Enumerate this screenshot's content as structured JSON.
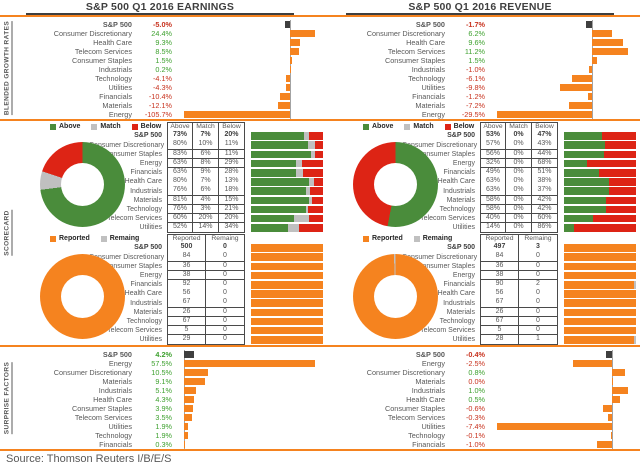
{
  "page": {
    "source": "Source: Thomson Reuters I/B/E/S",
    "section_labels": [
      "BLENDED GROWTH RATES",
      "SCORECARD",
      "SURPRISE FACTORS"
    ],
    "colors": {
      "orange": "#F5831F",
      "green": "#4A8C3B",
      "red": "#DD2415",
      "gray": "#C0C0C0",
      "dark": "#3F3F3F",
      "text_green": "#3EA12F",
      "text_red": "#C8331F"
    }
  },
  "panels": {
    "earnings": {
      "title": "S&P 500 Q1 2016 EARNINGS"
    },
    "revenue": {
      "title": "S&P 500 Q1 2016 REVENUE"
    }
  },
  "chart_data": [
    {
      "slot": "earnings-growth",
      "type": "bar",
      "title": "S&P 500 Q1 2016 Earnings — Blended Growth Rates (%)",
      "orientation": "horizontal",
      "rows": [
        {
          "label": "S&P 500",
          "value": -5.0,
          "display": "-5.0%",
          "color": "red",
          "benchmark": true
        },
        {
          "label": "Consumer Discretionary",
          "value": 24.4,
          "display": "24.4%",
          "color": "green"
        },
        {
          "label": "Health Care",
          "value": 9.3,
          "display": "9.3%",
          "color": "green"
        },
        {
          "label": "Telecom Services",
          "value": 8.5,
          "display": "8.5%",
          "color": "green"
        },
        {
          "label": "Consumer Staples",
          "value": 1.5,
          "display": "1.5%",
          "color": "green"
        },
        {
          "label": "Industrials",
          "value": 0.2,
          "display": "0.2%",
          "color": "green"
        },
        {
          "label": "Technology",
          "value": -4.1,
          "display": "-4.1%",
          "color": "red"
        },
        {
          "label": "Utilities",
          "value": -4.3,
          "display": "-4.3%",
          "color": "red"
        },
        {
          "label": "Financials",
          "value": -10.4,
          "display": "-10.4%",
          "color": "red"
        },
        {
          "label": "Materials",
          "value": -12.1,
          "display": "-12.1%",
          "color": "red"
        },
        {
          "label": "Energy",
          "value": -105.7,
          "display": "-105.7%",
          "color": "red"
        }
      ]
    },
    {
      "slot": "revenue-growth",
      "type": "bar",
      "title": "S&P 500 Q1 2016 Revenue — Blended Growth Rates (%)",
      "orientation": "horizontal",
      "rows": [
        {
          "label": "S&P 500",
          "value": -1.7,
          "display": "-1.7%",
          "color": "red",
          "benchmark": true
        },
        {
          "label": "Consumer Discretionary",
          "value": 6.2,
          "display": "6.2%",
          "color": "green"
        },
        {
          "label": "Health Care",
          "value": 9.6,
          "display": "9.6%",
          "color": "green"
        },
        {
          "label": "Telecom Services",
          "value": 11.2,
          "display": "11.2%",
          "color": "green"
        },
        {
          "label": "Consumer Staples",
          "value": 1.5,
          "display": "1.5%",
          "color": "green"
        },
        {
          "label": "Industrials",
          "value": -1.0,
          "display": "-1.0%",
          "color": "red"
        },
        {
          "label": "Technology",
          "value": -6.1,
          "display": "-6.1%",
          "color": "red"
        },
        {
          "label": "Utilities",
          "value": -9.8,
          "display": "-9.8%",
          "color": "red"
        },
        {
          "label": "Financials",
          "value": -1.2,
          "display": "-1.2%",
          "color": "red"
        },
        {
          "label": "Materials",
          "value": -7.2,
          "display": "-7.2%",
          "color": "red"
        },
        {
          "label": "Energy",
          "value": -29.5,
          "display": "-29.5%",
          "color": "red"
        }
      ]
    },
    {
      "slot": "earnings-scorecard-beats",
      "type": "donut+table+stacked-bar",
      "title": "S&P 500 Q1 2016 Earnings Scorecard — Above / Match / Below (%)",
      "legend": [
        "Above",
        "Match",
        "Below"
      ],
      "columns": [
        "Above",
        "Match",
        "Below"
      ],
      "rows": [
        {
          "label": "S&P 500",
          "above": 73,
          "match": 7,
          "below": 20
        },
        {
          "label": "Consumer Discretionary",
          "above": 80,
          "match": 10,
          "below": 11
        },
        {
          "label": "Consumer Staples",
          "above": 83,
          "match": 6,
          "below": 11
        },
        {
          "label": "Energy",
          "above": 63,
          "match": 8,
          "below": 29
        },
        {
          "label": "Financials",
          "above": 63,
          "match": 9,
          "below": 28
        },
        {
          "label": "Health Care",
          "above": 80,
          "match": 7,
          "below": 13
        },
        {
          "label": "Industrials",
          "above": 76,
          "match": 6,
          "below": 18
        },
        {
          "label": "Materials",
          "above": 81,
          "match": 4,
          "below": 15
        },
        {
          "label": "Technology",
          "above": 76,
          "match": 3,
          "below": 21
        },
        {
          "label": "Telecom Services",
          "above": 60,
          "match": 20,
          "below": 20
        },
        {
          "label": "Utilities",
          "above": 52,
          "match": 14,
          "below": 34
        }
      ]
    },
    {
      "slot": "revenue-scorecard-beats",
      "type": "donut+table+stacked-bar",
      "title": "S&P 500 Q1 2016 Revenue Scorecard — Above / Match / Below (%)",
      "legend": [
        "Above",
        "Match",
        "Below"
      ],
      "columns": [
        "Above",
        "Match",
        "Below"
      ],
      "rows": [
        {
          "label": "S&P 500",
          "above": 53,
          "match": 0,
          "below": 47
        },
        {
          "label": "Consumer Discretionary",
          "above": 57,
          "match": 0,
          "below": 43
        },
        {
          "label": "Consumer Staples",
          "above": 56,
          "match": 0,
          "below": 44
        },
        {
          "label": "Energy",
          "above": 32,
          "match": 0,
          "below": 68
        },
        {
          "label": "Financials",
          "above": 49,
          "match": 0,
          "below": 51
        },
        {
          "label": "Health Care",
          "above": 63,
          "match": 0,
          "below": 38
        },
        {
          "label": "Industrials",
          "above": 63,
          "match": 0,
          "below": 37
        },
        {
          "label": "Materials",
          "above": 58,
          "match": 0,
          "below": 42
        },
        {
          "label": "Technology",
          "above": 58,
          "match": 0,
          "below": 42
        },
        {
          "label": "Telecom Services",
          "above": 40,
          "match": 0,
          "below": 60
        },
        {
          "label": "Utilities",
          "above": 14,
          "match": 0,
          "below": 86
        }
      ]
    },
    {
      "slot": "earnings-scorecard-reported",
      "type": "donut+table+bar",
      "title": "S&P 500 Q1 2016 Earnings Scorecard — Reported / Remaining (companies)",
      "legend": [
        "Reported",
        "Remaing"
      ],
      "columns": [
        "Reported",
        "Remaing"
      ],
      "rows": [
        {
          "label": "S&P 500",
          "reported": 500,
          "remaining": 0
        },
        {
          "label": "Consumer Discretionary",
          "reported": 84,
          "remaining": 0
        },
        {
          "label": "Consumer Staples",
          "reported": 36,
          "remaining": 0
        },
        {
          "label": "Energy",
          "reported": 38,
          "remaining": 0
        },
        {
          "label": "Financials",
          "reported": 92,
          "remaining": 0
        },
        {
          "label": "Health Care",
          "reported": 56,
          "remaining": 0
        },
        {
          "label": "Industrials",
          "reported": 67,
          "remaining": 0
        },
        {
          "label": "Materials",
          "reported": 26,
          "remaining": 0
        },
        {
          "label": "Technology",
          "reported": 67,
          "remaining": 0
        },
        {
          "label": "Telecom Services",
          "reported": 5,
          "remaining": 0
        },
        {
          "label": "Utilities",
          "reported": 29,
          "remaining": 0
        }
      ]
    },
    {
      "slot": "revenue-scorecard-reported",
      "type": "donut+table+bar",
      "title": "S&P 500 Q1 2016 Revenue Scorecard — Reported / Remaining (companies)",
      "legend": [
        "Reported",
        "Remaing"
      ],
      "columns": [
        "Reported",
        "Remaing"
      ],
      "rows": [
        {
          "label": "S&P 500",
          "reported": 497,
          "remaining": 3
        },
        {
          "label": "Consumer Discretionary",
          "reported": 84,
          "remaining": 0
        },
        {
          "label": "Consumer Staples",
          "reported": 36,
          "remaining": 0
        },
        {
          "label": "Energy",
          "reported": 38,
          "remaining": 0
        },
        {
          "label": "Financials",
          "reported": 90,
          "remaining": 2
        },
        {
          "label": "Health Care",
          "reported": 56,
          "remaining": 0
        },
        {
          "label": "Industrials",
          "reported": 67,
          "remaining": 0
        },
        {
          "label": "Materials",
          "reported": 26,
          "remaining": 0
        },
        {
          "label": "Technology",
          "reported": 67,
          "remaining": 0
        },
        {
          "label": "Telecom Services",
          "reported": 5,
          "remaining": 0
        },
        {
          "label": "Utilities",
          "reported": 28,
          "remaining": 1
        }
      ]
    },
    {
      "slot": "earnings-surprise",
      "type": "bar",
      "title": "S&P 500 Q1 2016 Earnings — Surprise Factors (%)",
      "orientation": "horizontal",
      "rows": [
        {
          "label": "S&P 500",
          "value": 4.2,
          "display": "4.2%",
          "color": "green",
          "benchmark": true
        },
        {
          "label": "Energy",
          "value": 57.5,
          "display": "57.5%",
          "color": "green"
        },
        {
          "label": "Consumer Discretionary",
          "value": 10.5,
          "display": "10.5%",
          "color": "green"
        },
        {
          "label": "Materials",
          "value": 9.1,
          "display": "9.1%",
          "color": "green"
        },
        {
          "label": "Industrials",
          "value": 5.1,
          "display": "5.1%",
          "color": "green"
        },
        {
          "label": "Health Care",
          "value": 4.3,
          "display": "4.3%",
          "color": "green"
        },
        {
          "label": "Consumer Staples",
          "value": 3.9,
          "display": "3.9%",
          "color": "green"
        },
        {
          "label": "Telecom Services",
          "value": 3.5,
          "display": "3.5%",
          "color": "green"
        },
        {
          "label": "Utilities",
          "value": 1.9,
          "display": "1.9%",
          "color": "green"
        },
        {
          "label": "Technology",
          "value": 1.9,
          "display": "1.9%",
          "color": "green"
        },
        {
          "label": "Financials",
          "value": 0.3,
          "display": "0.3%",
          "color": "green"
        }
      ]
    },
    {
      "slot": "revenue-surprise",
      "type": "bar",
      "title": "S&P 500 Q1 2016 Revenue — Surprise Factors (%)",
      "orientation": "horizontal",
      "rows": [
        {
          "label": "S&P 500",
          "value": -0.4,
          "display": "-0.4%",
          "color": "red",
          "benchmark": true
        },
        {
          "label": "Energy",
          "value": -2.5,
          "display": "-2.5%",
          "color": "red"
        },
        {
          "label": "Consumer Discretionary",
          "value": 0.8,
          "display": "0.8%",
          "color": "green"
        },
        {
          "label": "Materials",
          "value": 0.0,
          "display": "0.0%",
          "color": "red"
        },
        {
          "label": "Industrials",
          "value": 1.0,
          "display": "1.0%",
          "color": "green"
        },
        {
          "label": "Health Care",
          "value": 0.5,
          "display": "0.5%",
          "color": "green"
        },
        {
          "label": "Consumer Staples",
          "value": -0.6,
          "display": "-0.6%",
          "color": "red"
        },
        {
          "label": "Telecom Services",
          "value": -0.3,
          "display": "-0.3%",
          "color": "red"
        },
        {
          "label": "Utilities",
          "value": -7.4,
          "display": "-7.4%",
          "color": "red"
        },
        {
          "label": "Technology",
          "value": -0.1,
          "display": "-0.1%",
          "color": "red"
        },
        {
          "label": "Financials",
          "value": -1.0,
          "display": "-1.0%",
          "color": "red"
        }
      ]
    }
  ]
}
